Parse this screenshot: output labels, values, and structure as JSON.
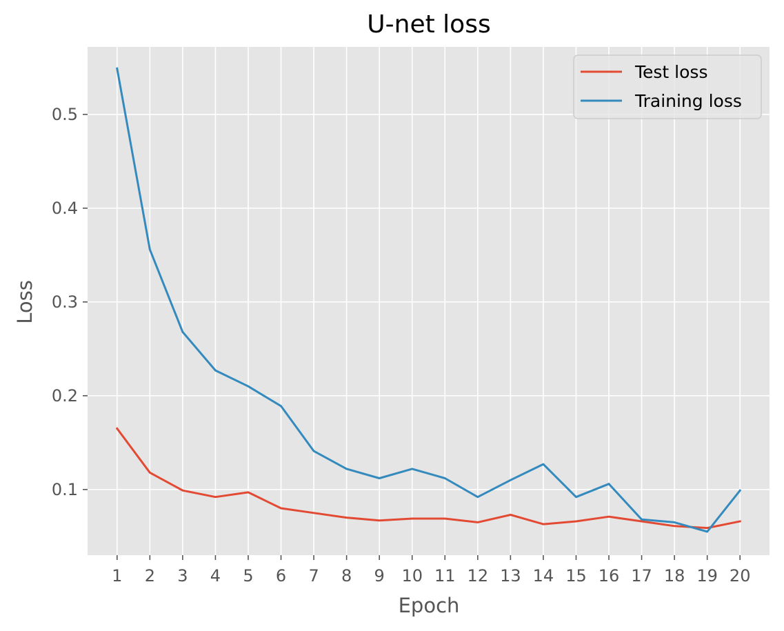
{
  "chart_data": {
    "type": "line",
    "title": "U-net loss",
    "xlabel": "Epoch",
    "ylabel": "Loss",
    "x": [
      1,
      2,
      3,
      4,
      5,
      6,
      7,
      8,
      9,
      10,
      11,
      12,
      13,
      14,
      15,
      16,
      17,
      18,
      19,
      20
    ],
    "x_ticks": [
      "1",
      "2",
      "3",
      "4",
      "5",
      "6",
      "7",
      "8",
      "9",
      "10",
      "11",
      "12",
      "13",
      "14",
      "15",
      "16",
      "17",
      "18",
      "19",
      "20"
    ],
    "y_ticks": [
      0.1,
      0.2,
      0.3,
      0.4,
      0.5
    ],
    "y_tick_labels": [
      "0.1",
      "0.2",
      "0.3",
      "0.4",
      "0.5"
    ],
    "xlim": [
      0.1,
      20.9
    ],
    "ylim": [
      0.03,
      0.572
    ],
    "grid": true,
    "legend_position": "top-right",
    "series": [
      {
        "name": "Test loss",
        "color": "#e24a33",
        "values": [
          0.165,
          0.118,
          0.099,
          0.092,
          0.097,
          0.08,
          0.075,
          0.07,
          0.067,
          0.069,
          0.069,
          0.065,
          0.073,
          0.063,
          0.066,
          0.071,
          0.066,
          0.061,
          0.059,
          0.066
        ]
      },
      {
        "name": "Training loss",
        "color": "#348abd",
        "values": [
          0.549,
          0.356,
          0.268,
          0.227,
          0.21,
          0.189,
          0.141,
          0.122,
          0.112,
          0.122,
          0.112,
          0.092,
          0.11,
          0.127,
          0.092,
          0.106,
          0.068,
          0.065,
          0.055,
          0.099
        ]
      }
    ]
  },
  "colors": {
    "plot_background": "#e5e5e5",
    "grid": "#ffffff",
    "tick_text": "#555555"
  }
}
